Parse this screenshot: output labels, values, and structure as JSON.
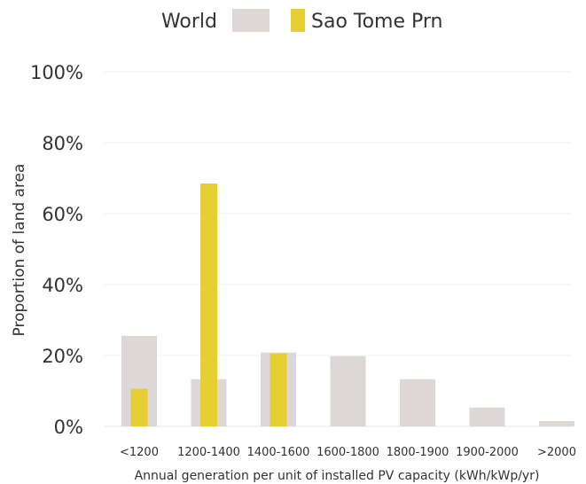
{
  "chart_data": {
    "type": "bar",
    "categories": [
      "<1200",
      "1200-1400",
      "1400-1600",
      "1600-1800",
      "1800-1900",
      "1900-2000",
      ">2000"
    ],
    "series": [
      {
        "name": "World",
        "values": [
          25.5,
          13.3,
          20.8,
          19.8,
          13.3,
          5.3,
          1.5
        ],
        "color": "#ddd7d7"
      },
      {
        "name": "Sao Tome Prn",
        "values": [
          10.6,
          68.5,
          20.6,
          null,
          null,
          null,
          null
        ],
        "color": "#e5cf32"
      }
    ],
    "xlabel": "Annual generation per unit of installed PV capacity (kWh/kWp/yr)",
    "ylabel": "Proportion of land area",
    "yticks": [
      "0%",
      "20%",
      "40%",
      "60%",
      "80%",
      "100%"
    ],
    "ylim": [
      0,
      100
    ],
    "grid": true,
    "legend_position": "top-center"
  }
}
